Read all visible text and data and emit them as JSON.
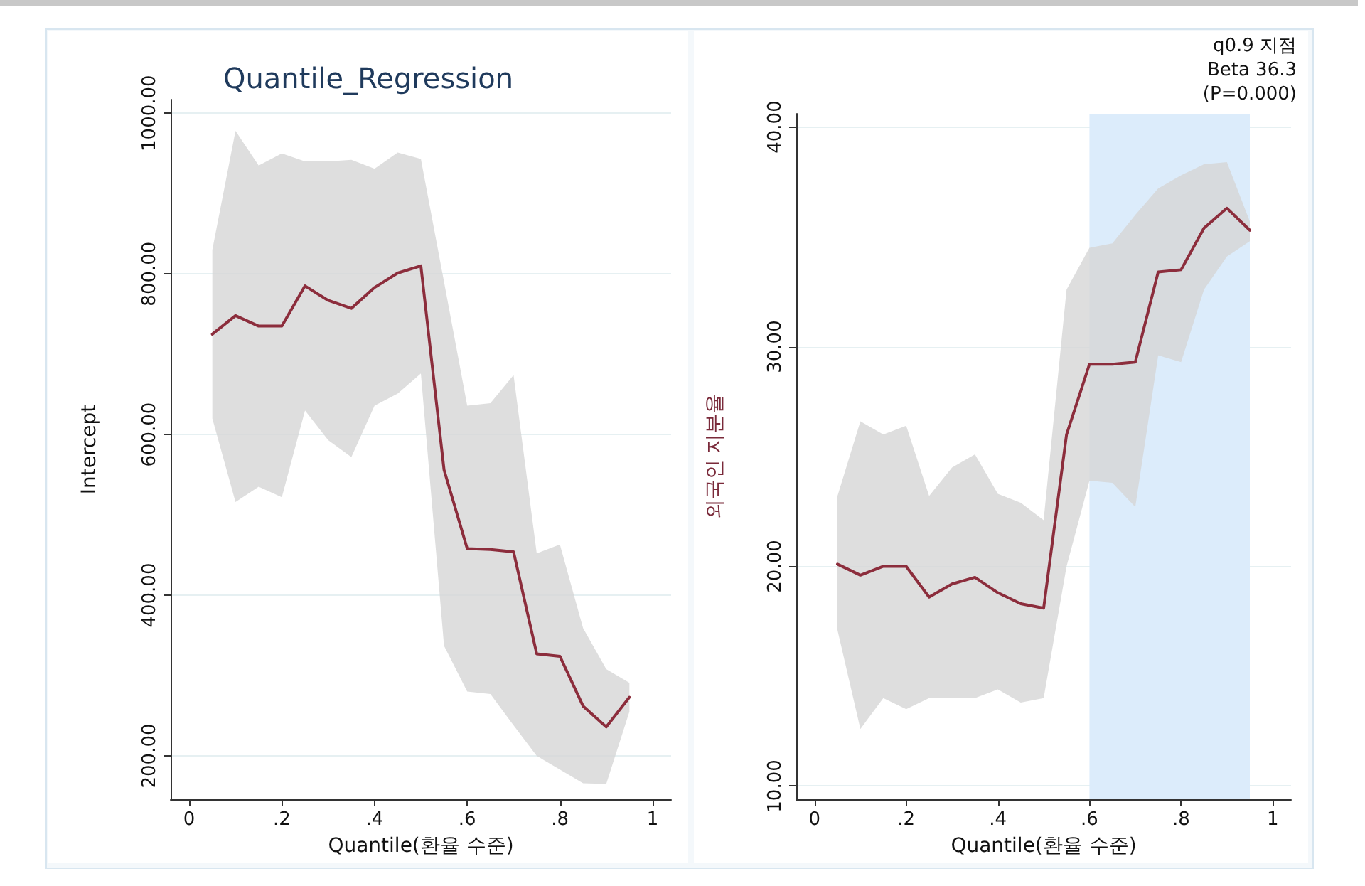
{
  "chart_data": [
    {
      "type": "line",
      "title": "Quantile_Regression",
      "xlabel": "Quantile(환율 수준)",
      "ylabel": "Intercept",
      "grid": "y",
      "marker": "none",
      "line_style": "solid",
      "x": [
        0.05,
        0.1,
        0.15,
        0.2,
        0.25,
        0.3,
        0.35,
        0.4,
        0.45,
        0.5,
        0.55,
        0.6,
        0.65,
        0.7,
        0.75,
        0.8,
        0.85,
        0.9,
        0.95
      ],
      "series": [
        {
          "color": "#8c2d3c",
          "values": [
            725,
            748,
            735,
            735,
            785,
            767,
            757,
            783,
            801,
            810,
            556,
            458,
            457,
            454,
            327,
            324,
            262,
            236,
            273
          ],
          "upper": [
            830,
            978,
            935,
            950,
            940,
            940,
            942,
            931,
            951,
            943,
            790,
            636,
            639,
            674,
            452,
            463,
            359,
            308,
            291
          ],
          "lower": [
            620,
            516,
            535,
            522,
            630,
            593,
            572,
            636,
            651,
            676,
            337,
            280,
            277,
            238,
            200,
            183,
            166,
            165,
            255
          ]
        }
      ],
      "xlim": [
        -0.04,
        1.04
      ],
      "xticks": [
        {
          "value": 0,
          "label": "0"
        },
        {
          "value": 0.2,
          "label": ".2"
        },
        {
          "value": 0.4,
          "label": ".4"
        },
        {
          "value": 0.6,
          "label": ".6"
        },
        {
          "value": 0.8,
          "label": ".8"
        },
        {
          "value": 1,
          "label": "1"
        }
      ],
      "ylim": [
        146,
        1017
      ],
      "yticks": [
        {
          "value": 200,
          "label": "200.00"
        },
        {
          "value": 400,
          "label": "400.00"
        },
        {
          "value": 600,
          "label": "600.00"
        },
        {
          "value": 800,
          "label": "800.00"
        },
        {
          "value": 1000,
          "label": "1000.00"
        }
      ]
    },
    {
      "type": "line",
      "xlabel": "Quantile(환율 수준)",
      "ylabel": "외국인 지분율",
      "grid": "y",
      "marker": "none",
      "line_style": "solid",
      "annotations": [
        "q0.9 지점",
        "Beta 36.3",
        "(P=0.000)"
      ],
      "x": [
        0.05,
        0.1,
        0.15,
        0.2,
        0.25,
        0.3,
        0.35,
        0.4,
        0.45,
        0.5,
        0.55,
        0.6,
        0.65,
        0.7,
        0.75,
        0.8,
        0.85,
        0.9,
        0.95
      ],
      "series": [
        {
          "color": "#8c2d3c",
          "values": [
            20.1,
            19.6,
            20.0,
            20.0,
            18.6,
            19.2,
            19.5,
            18.8,
            18.3,
            18.1,
            26.0,
            29.2,
            29.2,
            29.3,
            33.4,
            33.5,
            35.4,
            36.3,
            35.3
          ],
          "upper": [
            23.2,
            26.6,
            26.0,
            26.4,
            23.2,
            24.5,
            25.1,
            23.3,
            22.9,
            22.1,
            32.6,
            34.5,
            34.7,
            36.0,
            37.2,
            37.8,
            38.3,
            38.4,
            35.7
          ],
          "lower": [
            17.1,
            12.6,
            14.0,
            13.5,
            14.0,
            14.0,
            14.0,
            14.4,
            13.8,
            14.0,
            20.0,
            23.9,
            23.8,
            22.7,
            29.6,
            29.3,
            32.6,
            34.1,
            34.8
          ]
        }
      ],
      "bands": [
        {
          "axis": "x",
          "from": 0.6,
          "to": 0.95,
          "color": "#dcecfb"
        }
      ],
      "xlim": [
        -0.04,
        1.04
      ],
      "xticks": [
        {
          "value": 0,
          "label": "0"
        },
        {
          "value": 0.2,
          "label": ".2"
        },
        {
          "value": 0.4,
          "label": ".4"
        },
        {
          "value": 0.6,
          "label": ".6"
        },
        {
          "value": 0.8,
          "label": ".8"
        },
        {
          "value": 1,
          "label": "1"
        }
      ],
      "ylim": [
        9.4,
        40.6
      ],
      "yticks": [
        {
          "value": 10,
          "label": "10.00"
        },
        {
          "value": 20,
          "label": "20.00"
        },
        {
          "value": 30,
          "label": "30.00"
        },
        {
          "value": 40,
          "label": "40.00"
        }
      ]
    }
  ]
}
